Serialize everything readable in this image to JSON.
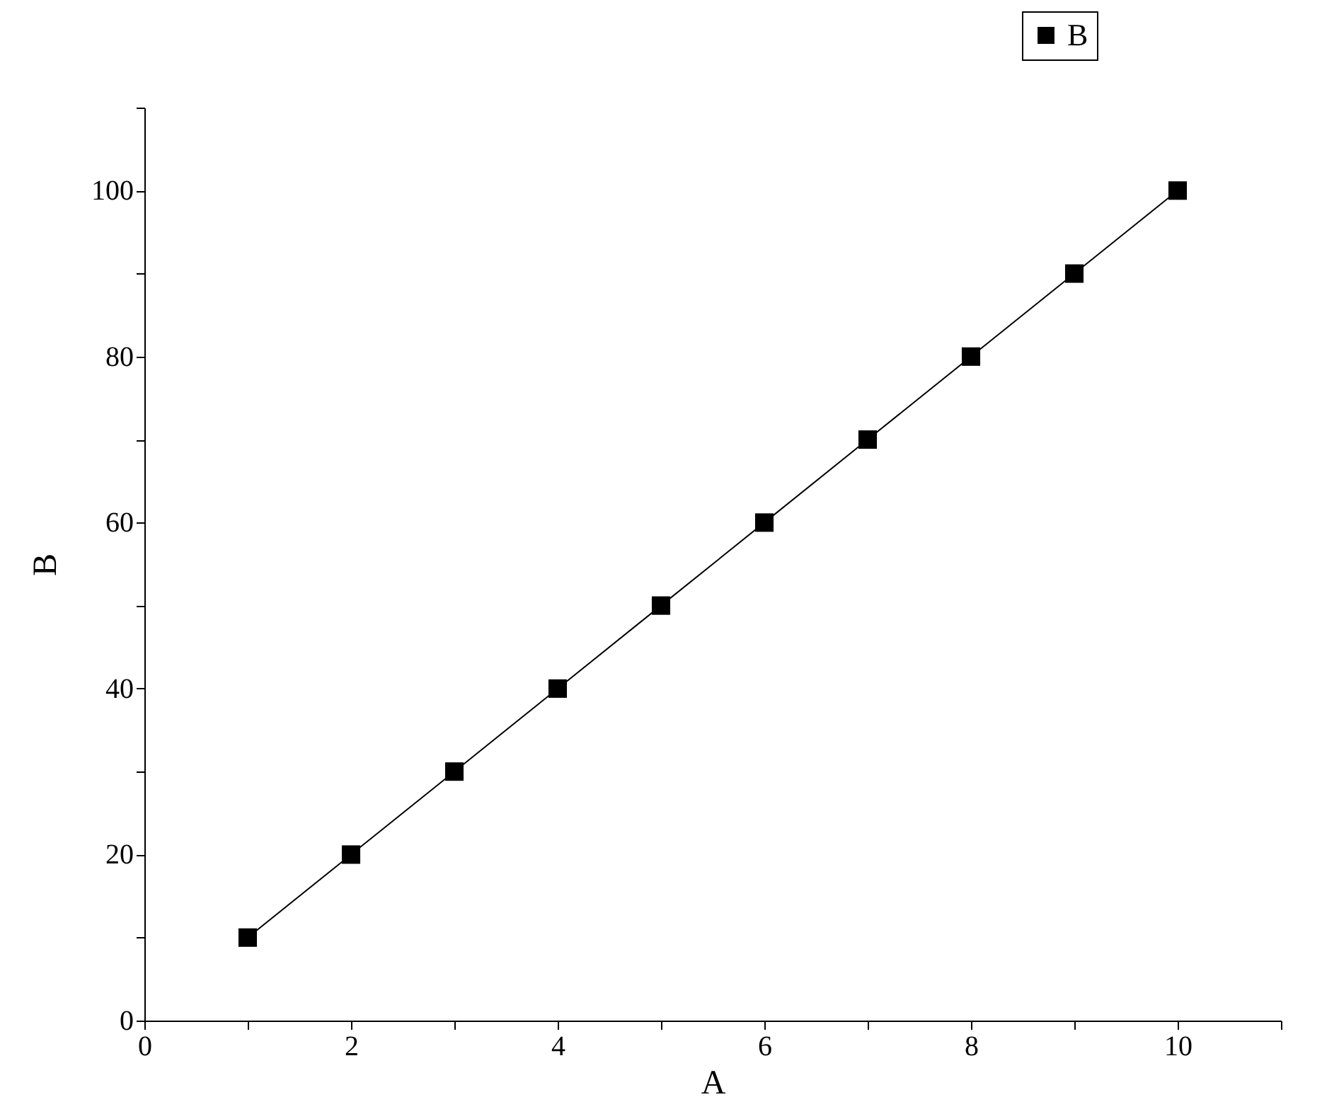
{
  "chart_data": {
    "type": "line",
    "xlabel": "A",
    "ylabel": "B",
    "x": [
      1,
      2,
      3,
      4,
      5,
      6,
      7,
      8,
      9,
      10
    ],
    "series": [
      {
        "name": "B",
        "color": "#000000",
        "values": [
          10,
          20,
          30,
          40,
          50,
          60,
          70,
          80,
          90,
          100
        ]
      }
    ],
    "xlim": [
      0,
      11
    ],
    "xticks": [
      0,
      {
        "value": 1,
        "label": null
      },
      2,
      {
        "value": 3,
        "label": null
      },
      4,
      {
        "value": 5,
        "label": null
      },
      6,
      {
        "value": 7,
        "label": null
      },
      8,
      {
        "value": 9,
        "label": null
      },
      10,
      {
        "value": 11,
        "label": null
      }
    ],
    "ylim": [
      0,
      110
    ],
    "yticks": [
      0,
      {
        "value": 10,
        "label": null
      },
      20,
      {
        "value": 30,
        "label": null
      },
      40,
      {
        "value": 50,
        "label": null
      },
      60,
      {
        "value": 70,
        "label": null
      },
      80,
      {
        "value": 90,
        "label": null
      },
      100,
      {
        "value": 110,
        "label": null
      }
    ],
    "marker": "square",
    "line_style": "solid",
    "grid": false,
    "legend": "top right"
  }
}
